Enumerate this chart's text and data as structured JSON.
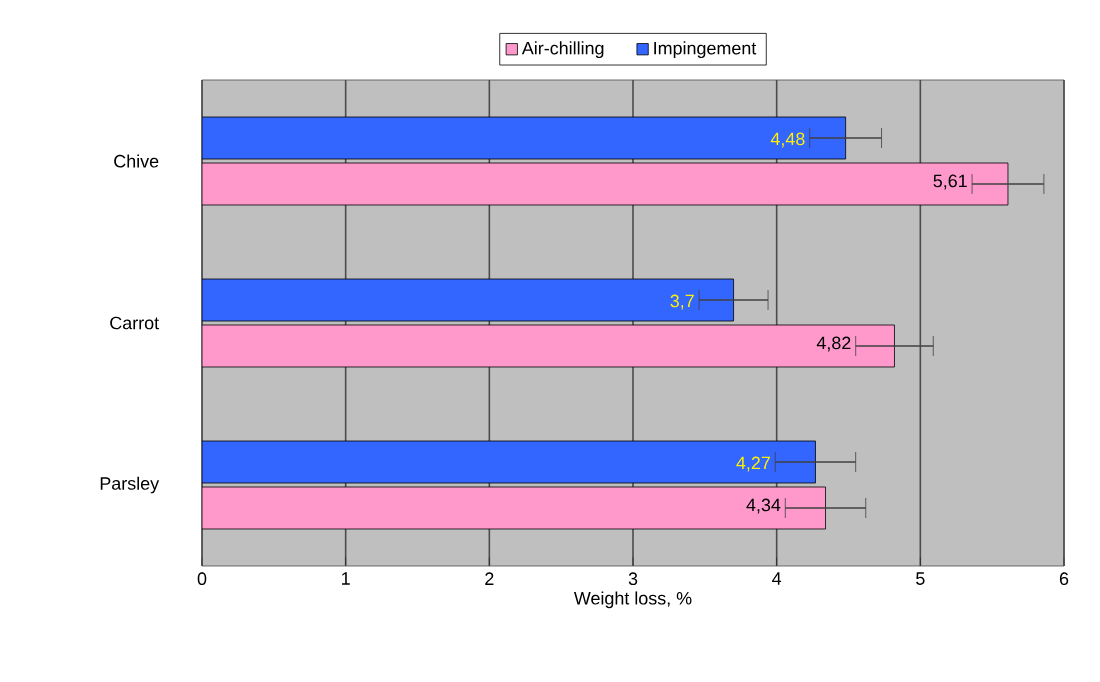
{
  "chart_data": {
    "type": "bar",
    "orientation": "horizontal",
    "xlabel": "Weight loss, %",
    "categories": [
      "Chive",
      "Carrot",
      "Parsley"
    ],
    "series": [
      {
        "name": "Air-chilling",
        "color": "#ff99cc",
        "values": [
          5.61,
          4.82,
          4.34
        ],
        "errors": [
          0.25,
          0.27,
          0.28
        ],
        "value_labels": [
          "5,61",
          "4,82",
          "4,34"
        ]
      },
      {
        "name": "Impingement",
        "color": "#3366ff",
        "values": [
          4.48,
          3.7,
          4.27
        ],
        "errors": [
          0.25,
          0.24,
          0.28
        ],
        "value_labels": [
          "4,48",
          "3,7",
          "4,27"
        ]
      }
    ],
    "xlim": [
      0,
      6
    ],
    "xticks": [
      0,
      1,
      2,
      3,
      4,
      5,
      6
    ],
    "grid": "x",
    "legend": "top"
  }
}
